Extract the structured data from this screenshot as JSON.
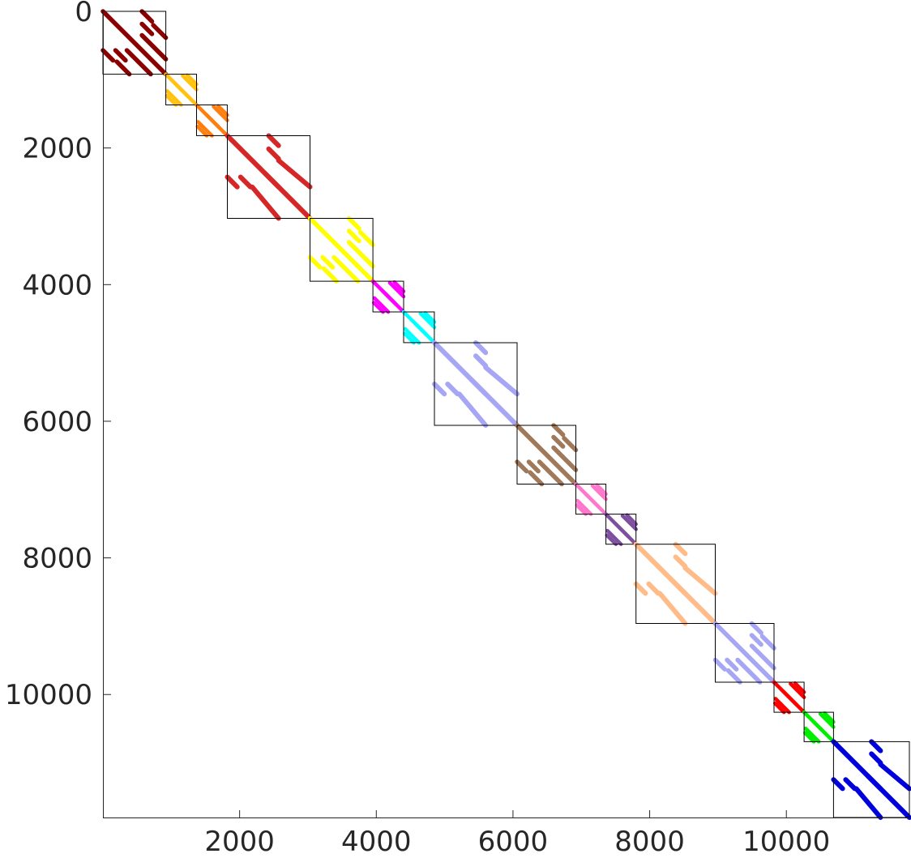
{
  "chart_data": {
    "type": "heatmap",
    "title": "",
    "xlabel": "",
    "ylabel": "",
    "xlim": [
      0,
      11800
    ],
    "ylim": [
      0,
      11800
    ],
    "y_reversed": true,
    "grid": false,
    "xticks": [
      {
        "value": 2000,
        "label": "2000"
      },
      {
        "value": 4000,
        "label": "4000"
      },
      {
        "value": 6000,
        "label": "6000"
      },
      {
        "value": 8000,
        "label": "8000"
      },
      {
        "value": 10000,
        "label": "10000"
      }
    ],
    "yticks": [
      {
        "value": 0,
        "label": "0"
      },
      {
        "value": 2000,
        "label": "2000"
      },
      {
        "value": 4000,
        "label": "4000"
      },
      {
        "value": 6000,
        "label": "6000"
      },
      {
        "value": 8000,
        "label": "8000"
      },
      {
        "value": 10000,
        "label": "10000"
      }
    ],
    "blocks": [
      {
        "start": 0,
        "end": 920,
        "color": "#8b0000",
        "pattern": "medium"
      },
      {
        "start": 920,
        "end": 1370,
        "color": "#ffc20e",
        "pattern": "small"
      },
      {
        "start": 1370,
        "end": 1820,
        "color": "#ff7f0e",
        "pattern": "small"
      },
      {
        "start": 1820,
        "end": 3030,
        "color": "#d62728",
        "pattern": "large"
      },
      {
        "start": 3030,
        "end": 3950,
        "color": "#ffff00",
        "pattern": "medium"
      },
      {
        "start": 3950,
        "end": 4400,
        "color": "#ff00ff",
        "pattern": "small"
      },
      {
        "start": 4400,
        "end": 4850,
        "color": "#00ffff",
        "pattern": "small"
      },
      {
        "start": 4850,
        "end": 6060,
        "color": "#a6a6f5",
        "pattern": "large"
      },
      {
        "start": 6060,
        "end": 6920,
        "color": "#a0785a",
        "pattern": "medium"
      },
      {
        "start": 6920,
        "end": 7360,
        "color": "#ff77cc",
        "pattern": "small"
      },
      {
        "start": 7360,
        "end": 7800,
        "color": "#7d4f9e",
        "pattern": "small"
      },
      {
        "start": 7800,
        "end": 8960,
        "color": "#ffbb88",
        "pattern": "large"
      },
      {
        "start": 8960,
        "end": 9820,
        "color": "#a6a6f5",
        "pattern": "medium"
      },
      {
        "start": 9820,
        "end": 10260,
        "color": "#ff0000",
        "pattern": "small"
      },
      {
        "start": 10260,
        "end": 10690,
        "color": "#00ee00",
        "pattern": "small"
      },
      {
        "start": 10690,
        "end": 11800,
        "color": "#0000dd",
        "pattern": "large"
      }
    ]
  }
}
